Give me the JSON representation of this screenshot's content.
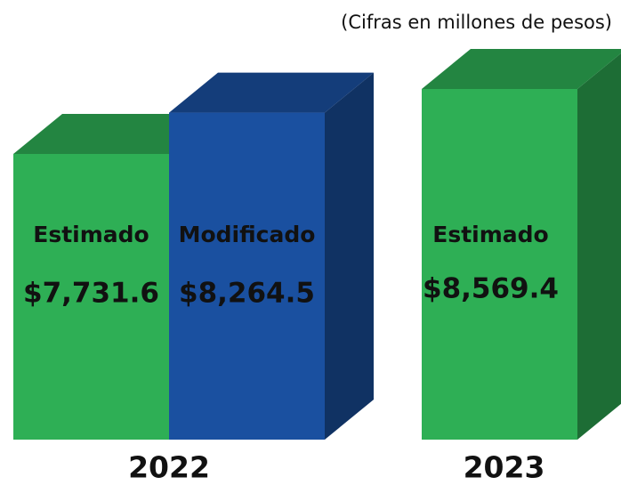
{
  "chart_data": {
    "type": "bar3d",
    "subtitle": "(Cifras en millones de pesos)",
    "categories": [
      "2022",
      "2023"
    ],
    "series": [
      {
        "name": "Estimado",
        "color": "#2eaf55",
        "values": [
          7731.6,
          8569.4
        ],
        "value_labels": [
          "$7,731.6",
          "$8,569.4"
        ]
      },
      {
        "name": "Modificado",
        "color": "#1a50a0",
        "values": [
          8264.5,
          null
        ],
        "value_labels": [
          "$8,264.5",
          null
        ]
      }
    ]
  }
}
